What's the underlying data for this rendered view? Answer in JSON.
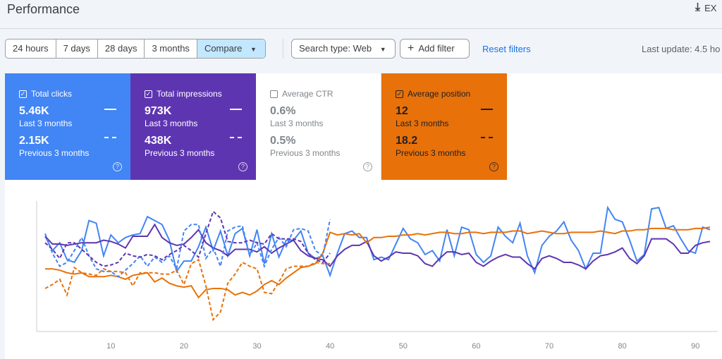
{
  "header": {
    "title": "Performance",
    "export_label": "EX",
    "export_icon": "download-icon"
  },
  "filters": {
    "ranges": [
      "24 hours",
      "7 days",
      "28 days",
      "3 months",
      "Compare"
    ],
    "search_type": "Search type: Web",
    "add_filter": "Add filter",
    "reset": "Reset filters",
    "last_update": "Last update: 4.5 ho"
  },
  "metrics": [
    {
      "label": "Total clicks",
      "checked": true,
      "current": "5.46K",
      "current_label": "Last 3 months",
      "previous": "2.15K",
      "previous_label": "Previous 3 months",
      "color": "#4285f4"
    },
    {
      "label": "Total impressions",
      "checked": true,
      "current": "973K",
      "current_label": "Last 3 months",
      "previous": "438K",
      "previous_label": "Previous 3 months",
      "color": "#5e35b1"
    },
    {
      "label": "Average CTR",
      "checked": false,
      "current": "0.6%",
      "current_label": "Last 3 months",
      "previous": "0.5%",
      "previous_label": "Previous 3 months",
      "color": "#ffffff"
    },
    {
      "label": "Average position",
      "checked": true,
      "current": "12",
      "current_label": "Last 3 months",
      "previous": "18.2",
      "previous_label": "Previous 3 months",
      "color": "#e8710a"
    }
  ],
  "chart_data": {
    "type": "line",
    "xlim": [
      1,
      92
    ],
    "ylim": [
      0,
      100
    ],
    "grid": false,
    "x_ticks": [
      "10",
      "20",
      "30",
      "40",
      "50",
      "60",
      "70",
      "80",
      "90"
    ],
    "series": [
      {
        "metric": "clicks",
        "period": "current",
        "color": "#4285f4",
        "dashed": false,
        "values": [
          73,
          62,
          68,
          55,
          53,
          62,
          85,
          83,
          58,
          74,
          68,
          72,
          74,
          75,
          88,
          85,
          82,
          70,
          46,
          54,
          54,
          65,
          80,
          62,
          77,
          58,
          75,
          79,
          58,
          78,
          52,
          75,
          57,
          70,
          70,
          77,
          60,
          56,
          58,
          43,
          60,
          75,
          77,
          72,
          72,
          55,
          57,
          55,
          67,
          79,
          71,
          68,
          59,
          62,
          54,
          78,
          58,
          80,
          78,
          59,
          53,
          58,
          80,
          73,
          68,
          83,
          58,
          45,
          66,
          73,
          77,
          84,
          70,
          62,
          48,
          60,
          60,
          95,
          86,
          84,
          70,
          54,
          59,
          94,
          95,
          79,
          81,
          71,
          62,
          60,
          80,
          78
        ]
      },
      {
        "metric": "impressions",
        "period": "current",
        "color": "#5e35b1",
        "dashed": false,
        "values": [
          73,
          67,
          67,
          66,
          67,
          68,
          68,
          68,
          70,
          69,
          67,
          64,
          73,
          73,
          73,
          82,
          72,
          68,
          66,
          67,
          72,
          78,
          68,
          64,
          62,
          58,
          63,
          63,
          63,
          61,
          65,
          60,
          64,
          67,
          70,
          62,
          58,
          56,
          55,
          50,
          58,
          63,
          66,
          66,
          69,
          58,
          54,
          57,
          61,
          60,
          60,
          58,
          52,
          50,
          56,
          61,
          61,
          59,
          60,
          53,
          50,
          54,
          57,
          59,
          57,
          57,
          52,
          48,
          56,
          58,
          56,
          53,
          53,
          51,
          48,
          54,
          58,
          59,
          61,
          64,
          56,
          52,
          58,
          71,
          71,
          71,
          67,
          60,
          60,
          66,
          68,
          69
        ]
      },
      {
        "metric": "position",
        "period": "current",
        "color": "#e8710a",
        "dashed": false,
        "values": [
          48,
          48,
          47,
          45,
          44,
          45,
          42,
          42,
          42,
          43,
          42,
          40,
          43,
          44,
          45,
          38,
          41,
          37,
          35,
          34,
          35,
          26,
          32,
          33,
          33,
          32,
          28,
          30,
          28,
          31,
          36,
          39,
          36,
          41,
          45,
          49,
          50,
          52,
          60,
          76,
          74,
          75,
          74,
          75,
          68,
          72,
          72,
          73,
          73,
          74,
          74,
          75,
          74,
          75,
          76,
          76,
          75,
          75,
          76,
          76,
          75,
          76,
          76,
          76,
          77,
          77,
          75,
          76,
          77,
          76,
          75,
          75,
          76,
          76,
          76,
          76,
          77,
          76,
          75,
          77,
          77,
          78,
          78,
          79,
          79,
          79,
          78,
          78,
          78,
          79,
          79,
          80
        ]
      },
      {
        "metric": "clicks",
        "period": "previous",
        "color": "#4285f4",
        "dashed": true,
        "values": [
          75,
          60,
          50,
          53,
          62,
          72,
          58,
          48,
          46,
          46,
          42,
          47,
          52,
          58,
          50,
          57,
          53,
          58,
          48,
          77,
          82,
          82,
          56,
          64,
          50,
          77,
          80,
          81,
          58,
          68,
          50,
          63,
          72,
          65,
          78,
          79,
          77,
          62,
          58,
          86
        ]
      },
      {
        "metric": "impressions",
        "period": "previous",
        "color": "#5e35b1",
        "dashed": true,
        "values": [
          68,
          63,
          56,
          68,
          68,
          63,
          58,
          53,
          50,
          51,
          53,
          60,
          58,
          57,
          59,
          58,
          55,
          59,
          62,
          66,
          62,
          57,
          75,
          92,
          87,
          69,
          68,
          68,
          70,
          68,
          67,
          75,
          71,
          71,
          71,
          69,
          60,
          55,
          53,
          60
        ]
      },
      {
        "metric": "position",
        "period": "previous",
        "color": "#e8710a",
        "dashed": true,
        "values": [
          33,
          36,
          40,
          28,
          49,
          45,
          44,
          43,
          48,
          46,
          46,
          45,
          35,
          45,
          45,
          45,
          44,
          44,
          47,
          36,
          52,
          55,
          35,
          9,
          15,
          37,
          44,
          53,
          50,
          48,
          30,
          29,
          38,
          48,
          50,
          50,
          50,
          53,
          52,
          52
        ]
      }
    ]
  }
}
